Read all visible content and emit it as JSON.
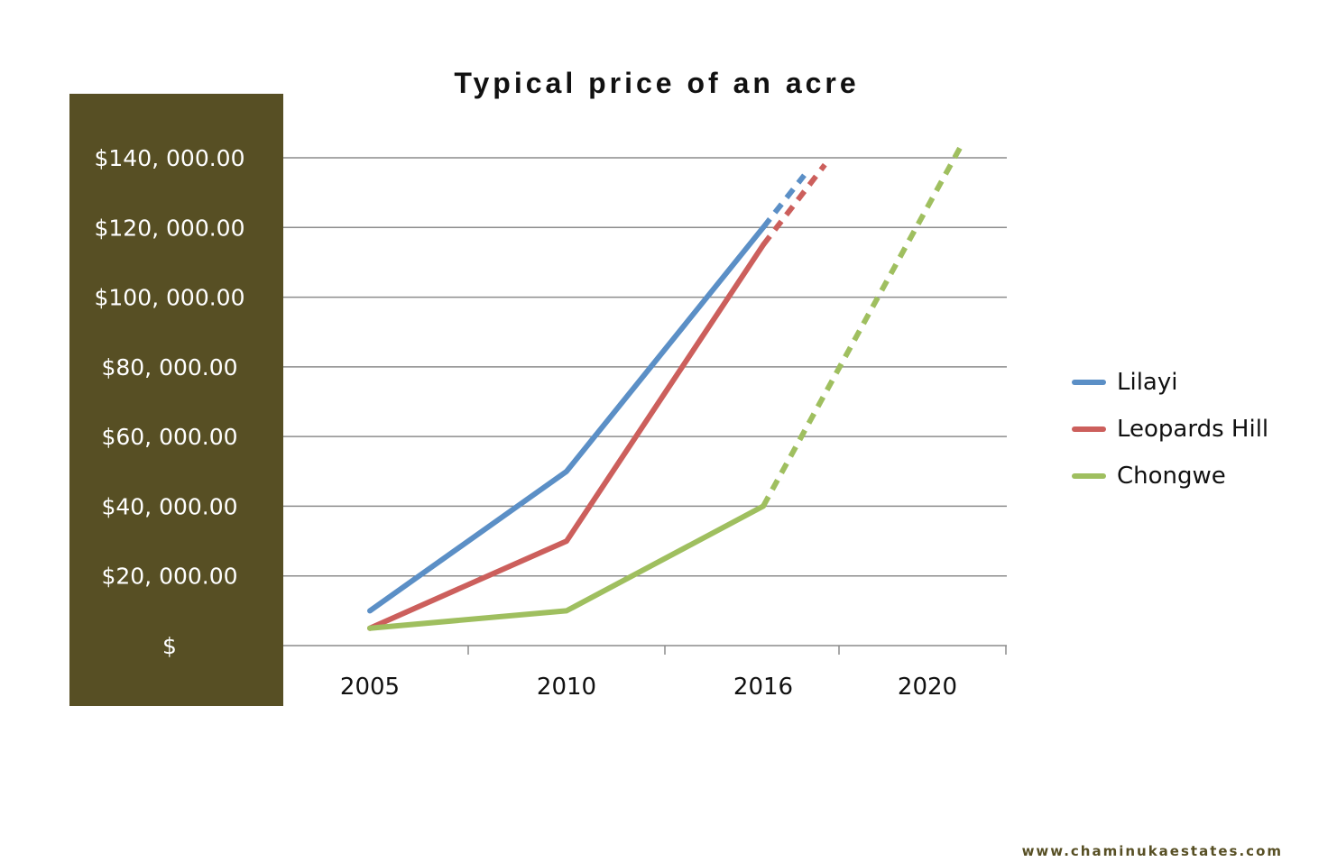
{
  "title": "Typical price of an acre",
  "footer": "www.chaminukaestates.com",
  "colors": {
    "y_panel": "#574f24",
    "gridline": "#8c8c8c",
    "footer": "#574f24"
  },
  "chart_data": {
    "type": "line",
    "title": "Typical price of an acre",
    "xlabel": "",
    "ylabel": "",
    "categories": [
      "2005",
      "2010",
      "2016",
      "2020"
    ],
    "ylim": [
      0,
      140000
    ],
    "y_tick_labels": [
      "$",
      "$20, 000.00",
      "$40, 000.00",
      "$60, 000.00",
      "$80, 000.00",
      "$100, 000.00",
      "$120, 000.00",
      "$140, 000.00"
    ],
    "y_tick_values": [
      0,
      20000,
      40000,
      60000,
      80000,
      100000,
      120000,
      140000
    ],
    "grid": true,
    "legend_position": "right",
    "series": [
      {
        "name": "Lilayi",
        "color": "#5b8fc6",
        "solid": [
          {
            "x": 2005,
            "y": 10000
          },
          {
            "x": 2010,
            "y": 50000
          },
          {
            "x": 2016,
            "y": 120000
          }
        ],
        "projected": [
          {
            "x": 2016,
            "y": 120000
          },
          {
            "x": 2017,
            "y": 135000
          }
        ]
      },
      {
        "name": "Leopards Hill",
        "color": "#cc5f5c",
        "solid": [
          {
            "x": 2005,
            "y": 5000
          },
          {
            "x": 2010,
            "y": 30000
          },
          {
            "x": 2016,
            "y": 115000
          }
        ],
        "projected": [
          {
            "x": 2016,
            "y": 115000
          },
          {
            "x": 2017.5,
            "y": 138000
          }
        ]
      },
      {
        "name": "Chongwe",
        "color": "#9fbf5f",
        "solid": [
          {
            "x": 2005,
            "y": 5000
          },
          {
            "x": 2010,
            "y": 10000
          },
          {
            "x": 2016,
            "y": 40000
          }
        ],
        "projected": [
          {
            "x": 2016,
            "y": 40000
          },
          {
            "x": 2020.8,
            "y": 143000
          }
        ]
      }
    ]
  }
}
